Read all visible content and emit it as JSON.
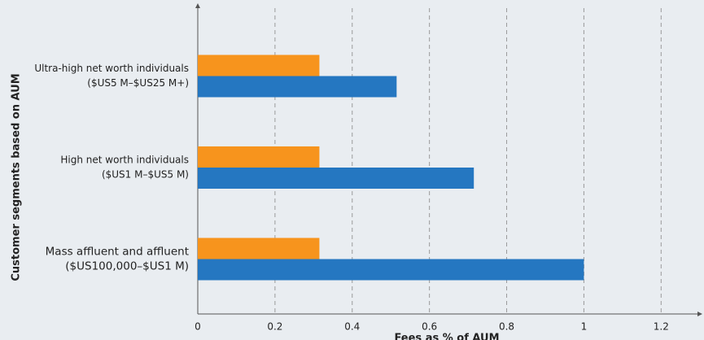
{
  "chart_data": {
    "type": "bar",
    "orientation": "horizontal",
    "x_label": "Fees as % of AUM",
    "y_label": "Customer segments based on AUM",
    "categories": [
      [
        "Ultra-high net worth individuals",
        "($US5 M–$US25 M+)"
      ],
      [
        "High net worth individuals",
        "($US1 M–$US5 M)"
      ],
      [
        "Mass affluent and affluent",
        "($US100,000–$US1 M)"
      ]
    ],
    "series": [
      {
        "color": "#f7941d",
        "values": [
          0.315,
          0.315,
          0.315
        ]
      },
      {
        "color": "#2577c1",
        "values": [
          0.515,
          0.715,
          1.0
        ]
      }
    ],
    "xlim": [
      0,
      1.29
    ],
    "xticks": [
      0,
      0.2,
      0.4,
      0.6,
      0.8,
      1,
      1.2
    ],
    "grid": true
  }
}
